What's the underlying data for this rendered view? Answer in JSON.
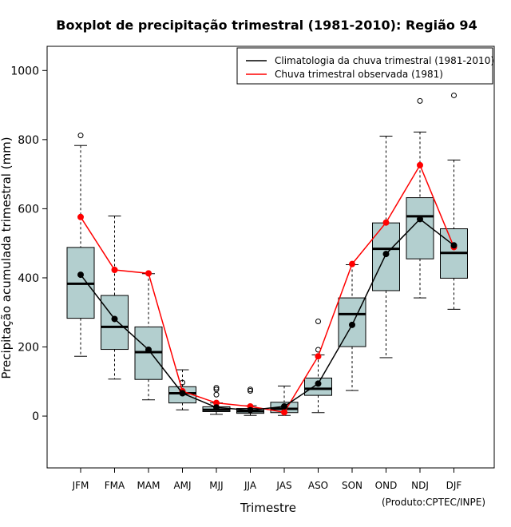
{
  "chart_data": {
    "type": "boxplot",
    "title": "Boxplot de precipitação trimestral (1981-2010): Região 94",
    "xlabel": "Trimestre",
    "ylabel": "Precipitação acumulada trimestral (mm)",
    "credit": "(Produto:CPTEC/INPE)",
    "ylim": [
      -150,
      1070
    ],
    "yticks": [
      0,
      200,
      400,
      600,
      800,
      1000
    ],
    "categories": [
      "JFM",
      "FMA",
      "MAM",
      "AMJ",
      "MJJ",
      "JJA",
      "JAS",
      "ASO",
      "SON",
      "OND",
      "NDJ",
      "DJF"
    ],
    "boxes": [
      {
        "min": 173,
        "q1": 283,
        "median": 383,
        "q3": 488,
        "max": 783,
        "outliers": [
          812
        ]
      },
      {
        "min": 107,
        "q1": 193,
        "median": 258,
        "q3": 349,
        "max": 579,
        "outliers": []
      },
      {
        "min": 47,
        "q1": 106,
        "median": 185,
        "q3": 258,
        "max": 412,
        "outliers": []
      },
      {
        "min": 18,
        "q1": 38,
        "median": 66,
        "q3": 85,
        "max": 134,
        "outliers": [
          97
        ]
      },
      {
        "min": 5,
        "q1": 13,
        "median": 18,
        "q3": 27,
        "max": 38,
        "outliers": [
          62,
          77,
          82
        ]
      },
      {
        "min": 2,
        "q1": 8,
        "median": 14,
        "q3": 22,
        "max": 30,
        "outliers": [
          73,
          77
        ]
      },
      {
        "min": 2,
        "q1": 10,
        "median": 21,
        "q3": 40,
        "max": 87,
        "outliers": []
      },
      {
        "min": 10,
        "q1": 60,
        "median": 79,
        "q3": 110,
        "max": 177,
        "outliers": [
          192,
          274
        ]
      },
      {
        "min": 74,
        "q1": 201,
        "median": 295,
        "q3": 342,
        "max": 438,
        "outliers": []
      },
      {
        "min": 169,
        "q1": 363,
        "median": 484,
        "q3": 559,
        "max": 810,
        "outliers": []
      },
      {
        "min": 342,
        "q1": 455,
        "median": 578,
        "q3": 632,
        "max": 822,
        "outliers": [
          912
        ]
      },
      {
        "min": 309,
        "q1": 399,
        "median": 472,
        "q3": 542,
        "max": 741,
        "outliers": [
          928
        ]
      }
    ],
    "series": [
      {
        "name": "Climatologia da chuva trimestral (1981-2010)",
        "color": "#000000",
        "values": [
          409,
          281,
          192,
          66,
          25,
          17,
          28,
          94,
          264,
          469,
          570,
          494
        ]
      },
      {
        "name": "Chuva trimestral observada (1981)",
        "color": "#ff0000",
        "values": [
          576,
          423,
          413,
          72,
          38,
          28,
          11,
          173,
          440,
          560,
          726,
          489
        ]
      }
    ],
    "box_fill": "#b3cfcf",
    "legend_position": "top-right",
    "grid": false
  }
}
